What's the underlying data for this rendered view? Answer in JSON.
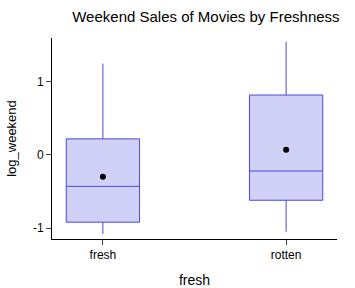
{
  "chart_data": {
    "type": "box",
    "title": "Weekend Sales of Movies by Freshness",
    "x_label": "fresh",
    "y_label": "log_weekend",
    "categories": [
      "fresh",
      "rotten"
    ],
    "lower_whisker": [
      -1.08,
      -1.05
    ],
    "q1": [
      -0.92,
      -0.62
    ],
    "median": [
      -0.43,
      -0.22
    ],
    "q3": [
      0.22,
      0.82
    ],
    "upper_whisker": [
      1.25,
      1.55
    ],
    "mean": [
      -0.3,
      0.07
    ],
    "color": "#4a4ad8",
    "marker": "circle",
    "ylim": [
      -1.15,
      1.6
    ],
    "yticks": [
      -1,
      0,
      1
    ],
    "grid": false
  }
}
